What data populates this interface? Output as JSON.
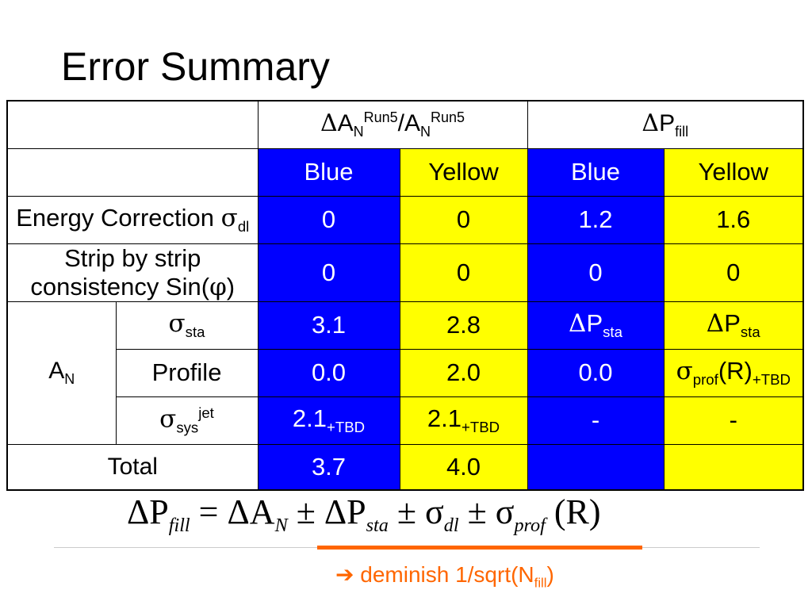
{
  "title": "Error Summary",
  "table": {
    "header1": {
      "col_a_delta": "Δ",
      "col_a_A": "A",
      "col_a_N": "N",
      "col_a_sup": "Run5",
      "col_a_slash": "/A",
      "col_a_N2": "N",
      "col_a_sup2": "Run5",
      "col_p_delta": "Δ",
      "col_p_P": "P",
      "col_p_sub": "fill"
    },
    "header2": [
      "Blue",
      "Yellow",
      "Blue",
      "Yellow"
    ],
    "rows": {
      "energy": {
        "label": "Energy Correction ",
        "sigma": "σ",
        "sub": "dl",
        "values": [
          "0",
          "0",
          "1.2",
          "1.6"
        ]
      },
      "strip": {
        "label": "Strip by strip consistency Sin(",
        "phi": "φ",
        "close": ")",
        "values": [
          "0",
          "0",
          "0",
          "0"
        ]
      },
      "an_label": "A",
      "an_sub": "N",
      "sta": {
        "sigma": "σ",
        "sub": "sta",
        "values": [
          "3.1",
          "2.8"
        ],
        "dp_delta": "Δ",
        "dp_P": "P",
        "dp_sub": "sta"
      },
      "profile": {
        "label": "Profile",
        "values": [
          "0.0",
          "2.0",
          "0.0"
        ],
        "sigma": "σ",
        "sub": "prof",
        "r": "(R)",
        "tbd": "+TBD"
      },
      "sys": {
        "sigma": "σ",
        "sub": "sys",
        "sup": "jet",
        "values": [
          "2.1",
          "2.1",
          "-",
          "-"
        ],
        "tbd": "+TBD"
      },
      "total": {
        "label": "Total",
        "values": [
          "3.7",
          "4.0"
        ]
      }
    }
  },
  "formula": {
    "dP": "ΔP",
    "fill": "fill",
    "eq": " = ",
    "dA": "ΔA",
    "N": "N",
    "pm1": " ± ",
    "dPsta": "ΔP",
    "sta": "sta",
    "pm2": " ± ",
    "sig1": "σ",
    "dl": "dl",
    "pm3": " ± ",
    "sig2": "σ",
    "prof": "prof",
    "R": " (R)"
  },
  "note": {
    "arrow": "➔",
    "text": " deminish 1/sqrt(N",
    "sub": "fill",
    "close": ")"
  },
  "colors": {
    "blue": "#0000ff",
    "yellow": "#ffff00",
    "accent": "#ff6600"
  }
}
